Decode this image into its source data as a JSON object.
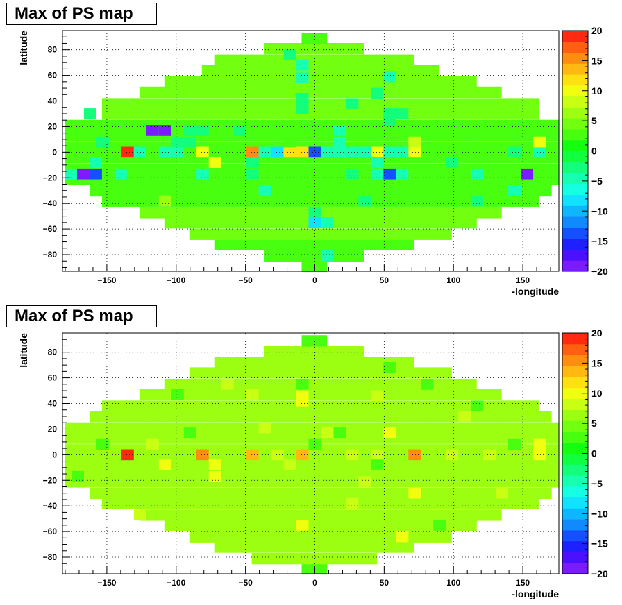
{
  "chart_data": [
    {
      "type": "heatmap",
      "title": "Max of PS map",
      "xlabel": "-longitude",
      "ylabel": "latitude",
      "xlim": [
        -182,
        176
      ],
      "ylim": [
        -93,
        95
      ],
      "x_ticks": [
        -150,
        -100,
        -50,
        0,
        50,
        100,
        150
      ],
      "y_ticks": [
        -80,
        -60,
        -40,
        -20,
        0,
        20,
        40,
        60,
        80
      ],
      "zlim": [
        -20,
        20
      ],
      "z_ticks": [
        -20,
        -15,
        -10,
        -5,
        0,
        5,
        10,
        15,
        20
      ],
      "grid": true,
      "colorbar": true,
      "cell_width_deg": 9,
      "cell_height_deg": 8.5,
      "background_value": 4,
      "rows": [
        {
          "lat": -89,
          "half_width": 5,
          "value": 2
        },
        {
          "lat": -81,
          "half_width": 32,
          "value": 3
        },
        {
          "lat": -72,
          "half_width": 68,
          "value": 3
        },
        {
          "lat": -64,
          "half_width": 94,
          "value": 4
        },
        {
          "lat": -55,
          "half_width": 112,
          "value": 4
        },
        {
          "lat": -47,
          "half_width": 130,
          "value": 4
        },
        {
          "lat": -38,
          "half_width": 157,
          "value": 3
        },
        {
          "lat": -30,
          "half_width": 166,
          "value": 3
        },
        {
          "lat": -21,
          "half_width": 176,
          "value": 3
        },
        {
          "lat": -13,
          "half_width": 176,
          "value": 3
        },
        {
          "lat": -4,
          "half_width": 176,
          "value": 3
        },
        {
          "lat": 4,
          "half_width": 176,
          "value": 3
        },
        {
          "lat": 13,
          "half_width": 176,
          "value": 3
        },
        {
          "lat": 21,
          "half_width": 176,
          "value": 3
        },
        {
          "lat": 30,
          "half_width": 157,
          "value": 4
        },
        {
          "lat": 38,
          "half_width": 157,
          "value": 4
        },
        {
          "lat": 47,
          "half_width": 130,
          "value": 4
        },
        {
          "lat": 55,
          "half_width": 112,
          "value": 4
        },
        {
          "lat": 64,
          "half_width": 85,
          "value": 4
        },
        {
          "lat": 72,
          "half_width": 68,
          "value": 4
        },
        {
          "lat": 81,
          "half_width": 32,
          "value": 4
        },
        {
          "lat": 89,
          "half_width": 5,
          "value": 2
        }
      ],
      "spots": [
        {
          "x": -135,
          "y": 0,
          "z": 20
        },
        {
          "x": -126,
          "y": 0,
          "z": -5
        },
        {
          "x": -108,
          "y": 0,
          "z": -5
        },
        {
          "x": -99,
          "y": 0,
          "z": -5
        },
        {
          "x": -81,
          "y": 0,
          "z": 10
        },
        {
          "x": -72,
          "y": -8,
          "z": 10
        },
        {
          "x": -45,
          "y": 0,
          "z": 15
        },
        {
          "x": -36,
          "y": 0,
          "z": -5
        },
        {
          "x": -27,
          "y": 0,
          "z": -8
        },
        {
          "x": -18,
          "y": 0,
          "z": 11
        },
        {
          "x": -9,
          "y": 0,
          "z": 11
        },
        {
          "x": 0,
          "y": 0,
          "z": -13
        },
        {
          "x": 9,
          "y": 0,
          "z": -5
        },
        {
          "x": 18,
          "y": 0,
          "z": -5
        },
        {
          "x": 27,
          "y": 0,
          "z": -5
        },
        {
          "x": 36,
          "y": 0,
          "z": -5
        },
        {
          "x": 45,
          "y": 0,
          "z": 10
        },
        {
          "x": 54,
          "y": 0,
          "z": -5
        },
        {
          "x": 63,
          "y": 0,
          "z": -5
        },
        {
          "x": 72,
          "y": 0,
          "z": 10
        },
        {
          "x": 144,
          "y": 0,
          "z": -3
        },
        {
          "x": 162,
          "y": 0,
          "z": -5
        },
        {
          "x": 162,
          "y": 8,
          "z": 10
        },
        {
          "x": -117,
          "y": 17,
          "z": -20
        },
        {
          "x": -108,
          "y": 17,
          "z": -20
        },
        {
          "x": -90,
          "y": 17,
          "z": -3
        },
        {
          "x": -81,
          "y": 17,
          "z": -3
        },
        {
          "x": -99,
          "y": 8,
          "z": -3
        },
        {
          "x": -90,
          "y": 8,
          "z": -3
        },
        {
          "x": -54,
          "y": 17,
          "z": -3
        },
        {
          "x": 18,
          "y": 17,
          "z": -5
        },
        {
          "x": 18,
          "y": 8,
          "z": -5
        },
        {
          "x": -18,
          "y": 8,
          "z": 3
        },
        {
          "x": -153,
          "y": 8,
          "z": -3
        },
        {
          "x": -162,
          "y": 30,
          "z": -3
        },
        {
          "x": 54,
          "y": 30,
          "z": -2
        },
        {
          "x": 54,
          "y": 25,
          "z": -3
        },
        {
          "x": 63,
          "y": 30,
          "z": -2
        },
        {
          "x": -9,
          "y": 34,
          "z": -3
        },
        {
          "x": -9,
          "y": 42,
          "z": -3
        },
        {
          "x": 27,
          "y": 38,
          "z": -3
        },
        {
          "x": 45,
          "y": 46,
          "z": -3
        },
        {
          "x": -9,
          "y": 58,
          "z": -5
        },
        {
          "x": 54,
          "y": 59,
          "z": -5
        },
        {
          "x": -18,
          "y": 76,
          "z": -3
        },
        {
          "x": -9,
          "y": 68,
          "z": -5
        },
        {
          "x": -167,
          "y": -17,
          "z": -20
        },
        {
          "x": -158,
          "y": -17,
          "z": -14
        },
        {
          "x": -176,
          "y": -17,
          "z": -5
        },
        {
          "x": -140,
          "y": -17,
          "z": -5
        },
        {
          "x": -158,
          "y": -8,
          "z": -5
        },
        {
          "x": -81,
          "y": -17,
          "z": -5
        },
        {
          "x": -45,
          "y": -8,
          "z": -3
        },
        {
          "x": -45,
          "y": -17,
          "z": -3
        },
        {
          "x": 27,
          "y": -17,
          "z": -3
        },
        {
          "x": 45,
          "y": -8,
          "z": -5
        },
        {
          "x": 45,
          "y": -17,
          "z": -5
        },
        {
          "x": 54,
          "y": -17,
          "z": -13
        },
        {
          "x": 63,
          "y": -17,
          "z": -5
        },
        {
          "x": 99,
          "y": -8,
          "z": -3
        },
        {
          "x": 117,
          "y": -17,
          "z": -5
        },
        {
          "x": 153,
          "y": -17,
          "z": -20
        },
        {
          "x": -36,
          "y": -30,
          "z": -5
        },
        {
          "x": 36,
          "y": -38,
          "z": -3
        },
        {
          "x": 144,
          "y": -30,
          "z": -5
        },
        {
          "x": 117,
          "y": -38,
          "z": -2
        },
        {
          "x": 0,
          "y": -47,
          "z": -3
        },
        {
          "x": 0,
          "y": -55,
          "z": -8
        },
        {
          "x": 9,
          "y": -55,
          "z": -5
        },
        {
          "x": 9,
          "y": -81,
          "z": -5
        },
        {
          "x": -108,
          "y": -38,
          "z": 7
        },
        {
          "x": 72,
          "y": 8,
          "z": 8
        }
      ]
    },
    {
      "type": "heatmap",
      "title": "Max of PS map",
      "xlabel": "-longitude",
      "ylabel": "latitude",
      "xlim": [
        -182,
        176
      ],
      "ylim": [
        -93,
        95
      ],
      "x_ticks": [
        -150,
        -100,
        -50,
        0,
        50,
        100,
        150
      ],
      "y_ticks": [
        -80,
        -60,
        -40,
        -20,
        0,
        20,
        40,
        60,
        80
      ],
      "zlim": [
        -20,
        20
      ],
      "z_ticks": [
        -20,
        -15,
        -10,
        -5,
        0,
        5,
        10,
        15,
        20
      ],
      "grid": true,
      "colorbar": true,
      "cell_width_deg": 9,
      "cell_height_deg": 8.5,
      "background_value": 6,
      "rows": [
        {
          "lat": -89,
          "half_width": 5,
          "value": 3
        },
        {
          "lat": -81,
          "half_width": 41,
          "value": 6
        },
        {
          "lat": -72,
          "half_width": 68,
          "value": 6
        },
        {
          "lat": -64,
          "half_width": 94,
          "value": 6
        },
        {
          "lat": -55,
          "half_width": 112,
          "value": 6
        },
        {
          "lat": -47,
          "half_width": 130,
          "value": 6
        },
        {
          "lat": -38,
          "half_width": 157,
          "value": 6
        },
        {
          "lat": -30,
          "half_width": 166,
          "value": 6
        },
        {
          "lat": -21,
          "half_width": 176,
          "value": 6
        },
        {
          "lat": -13,
          "half_width": 176,
          "value": 6
        },
        {
          "lat": -4,
          "half_width": 176,
          "value": 6
        },
        {
          "lat": 4,
          "half_width": 176,
          "value": 6
        },
        {
          "lat": 13,
          "half_width": 176,
          "value": 6
        },
        {
          "lat": 21,
          "half_width": 176,
          "value": 6
        },
        {
          "lat": 30,
          "half_width": 166,
          "value": 6
        },
        {
          "lat": 38,
          "half_width": 157,
          "value": 6
        },
        {
          "lat": 47,
          "half_width": 130,
          "value": 6
        },
        {
          "lat": 55,
          "half_width": 112,
          "value": 6
        },
        {
          "lat": 64,
          "half_width": 94,
          "value": 6
        },
        {
          "lat": 72,
          "half_width": 68,
          "value": 6
        },
        {
          "lat": 81,
          "half_width": 32,
          "value": 6
        },
        {
          "lat": 89,
          "half_width": 5,
          "value": 3
        }
      ],
      "spots": [
        {
          "x": -135,
          "y": 0,
          "z": 20
        },
        {
          "x": -81,
          "y": 0,
          "z": 15
        },
        {
          "x": -45,
          "y": 0,
          "z": 14
        },
        {
          "x": -9,
          "y": 0,
          "z": 14
        },
        {
          "x": 72,
          "y": 0,
          "z": 15
        },
        {
          "x": -72,
          "y": -8,
          "z": 10
        },
        {
          "x": -72,
          "y": -17,
          "z": 10
        },
        {
          "x": -108,
          "y": -8,
          "z": 10
        },
        {
          "x": -27,
          "y": 0,
          "z": 9
        },
        {
          "x": 27,
          "y": 0,
          "z": 9
        },
        {
          "x": 45,
          "y": 0,
          "z": 9
        },
        {
          "x": 99,
          "y": 0,
          "z": 9
        },
        {
          "x": 126,
          "y": 0,
          "z": 9
        },
        {
          "x": 162,
          "y": 0,
          "z": 10
        },
        {
          "x": 162,
          "y": 8,
          "z": 10
        },
        {
          "x": -117,
          "y": 8,
          "z": 9
        },
        {
          "x": 54,
          "y": 17,
          "z": 10
        },
        {
          "x": -9,
          "y": 42,
          "z": 10
        },
        {
          "x": -9,
          "y": 46,
          "z": 10
        },
        {
          "x": 72,
          "y": -30,
          "z": 10
        },
        {
          "x": -9,
          "y": -55,
          "z": 10
        },
        {
          "x": 63,
          "y": -64,
          "z": 10
        },
        {
          "x": -9,
          "y": 55,
          "z": 2
        },
        {
          "x": 45,
          "y": 46,
          "z": 9
        },
        {
          "x": -90,
          "y": 17,
          "z": 3
        },
        {
          "x": -171,
          "y": -17,
          "z": 2
        },
        {
          "x": -153,
          "y": 8,
          "z": 3
        },
        {
          "x": 0,
          "y": 8,
          "z": 3
        },
        {
          "x": 45,
          "y": -8,
          "z": 3
        },
        {
          "x": 144,
          "y": 8,
          "z": 3
        },
        {
          "x": 117,
          "y": 38,
          "z": 3
        },
        {
          "x": 54,
          "y": 68,
          "z": 3
        },
        {
          "x": 81,
          "y": 55,
          "z": 3
        },
        {
          "x": -99,
          "y": 47,
          "z": 3
        },
        {
          "x": 90,
          "y": -55,
          "z": 3
        },
        {
          "x": 18,
          "y": 17,
          "z": 3
        },
        {
          "x": -45,
          "y": 47,
          "z": 8
        },
        {
          "x": -36,
          "y": 21,
          "z": 8
        },
        {
          "x": 108,
          "y": 30,
          "z": 8
        },
        {
          "x": -18,
          "y": -8,
          "z": 8
        },
        {
          "x": 9,
          "y": 17,
          "z": 8
        },
        {
          "x": -126,
          "y": -47,
          "z": 8
        },
        {
          "x": 27,
          "y": -38,
          "z": 8
        },
        {
          "x": 135,
          "y": -30,
          "z": 8
        },
        {
          "x": -63,
          "y": 55,
          "z": 8
        },
        {
          "x": 36,
          "y": -21,
          "z": 8
        }
      ]
    }
  ]
}
